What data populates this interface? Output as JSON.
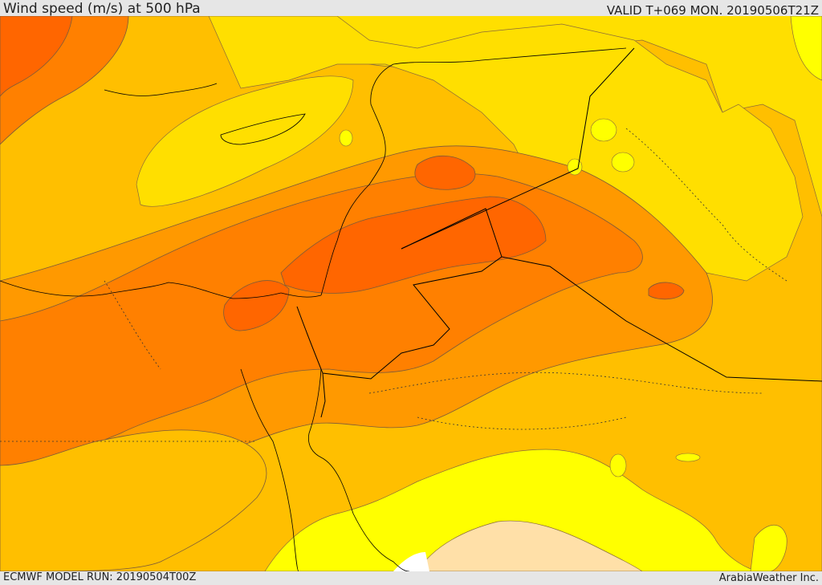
{
  "header": {
    "title": "Wind speed (m/s) at 500 hPa",
    "valid": "VALID T+069 MON. 20190506T21Z"
  },
  "footer": {
    "model_run": "ECMWF MODEL RUN: 20190504T00Z",
    "credit": "ArabiaWeather Inc."
  },
  "map": {
    "variable": "wind speed at 500 hPa",
    "palette": {
      "lowest": "#ffff00",
      "low": "#ffdf00",
      "medium": "#ffbf00",
      "high": "#ff9900",
      "higher": "#ff8000",
      "highest": "#ff6600",
      "sea_edge_band": "#ffe0a8",
      "no_data": "#ffffff",
      "contour_line": "#7a5a3a",
      "border_line": "#000000"
    }
  }
}
